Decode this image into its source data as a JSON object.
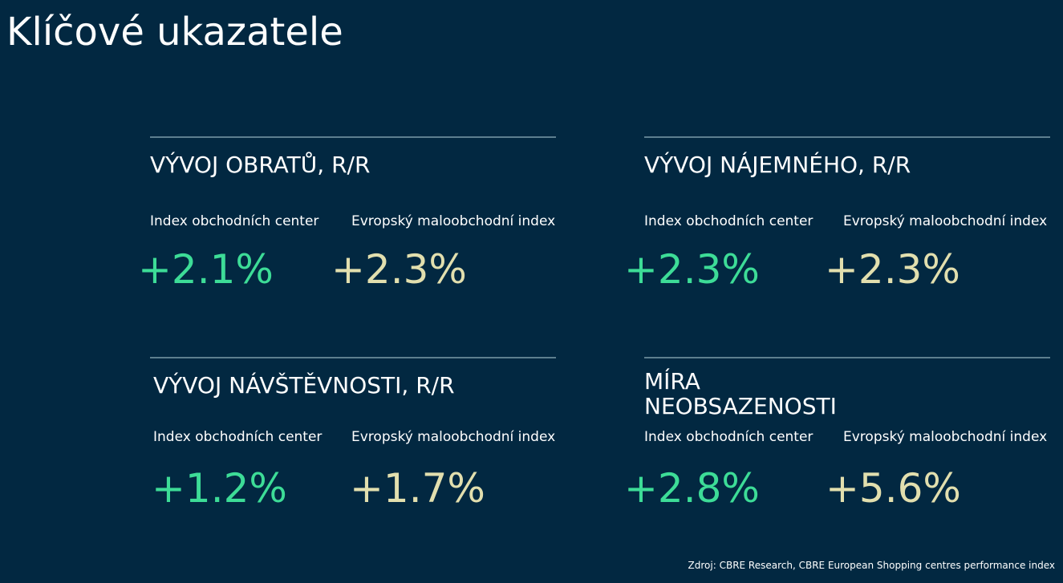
{
  "title": "Klíčové ukazatele",
  "colors": {
    "background": "#022841",
    "rule": "#5d7f8f",
    "shopping_index": "#3ddc97",
    "european_index": "#e2dfae"
  },
  "cards": [
    {
      "title": "VÝVOJ OBRATŮ, R/R",
      "metrics": [
        {
          "label": "Index obchodních center",
          "value": "+2.1%"
        },
        {
          "label": "Evropský maloobchodní index",
          "value": "+2.3%"
        }
      ]
    },
    {
      "title": "VÝVOJ NÁJEMNÉHO, R/R",
      "metrics": [
        {
          "label": "Index obchodních center",
          "value": "+2.3%"
        },
        {
          "label": "Evropský maloobchodní index",
          "value": "+2.3%"
        }
      ]
    },
    {
      "title": "VÝVOJ NÁVŠTĚVNOSTI, R/R",
      "metrics": [
        {
          "label": "Index obchodních center",
          "value": "+1.2%"
        },
        {
          "label": "Evropský maloobchodní index",
          "value": "+1.7%"
        }
      ]
    },
    {
      "title": "MÍRA NEOBSAZENOSTI",
      "metrics": [
        {
          "label": "Index obchodních center",
          "value": "+2.8%"
        },
        {
          "label": "Evropský maloobchodní index",
          "value": "+5.6%"
        }
      ]
    }
  ],
  "source": "Zdroj: CBRE Research, CBRE European Shopping centres performance index"
}
